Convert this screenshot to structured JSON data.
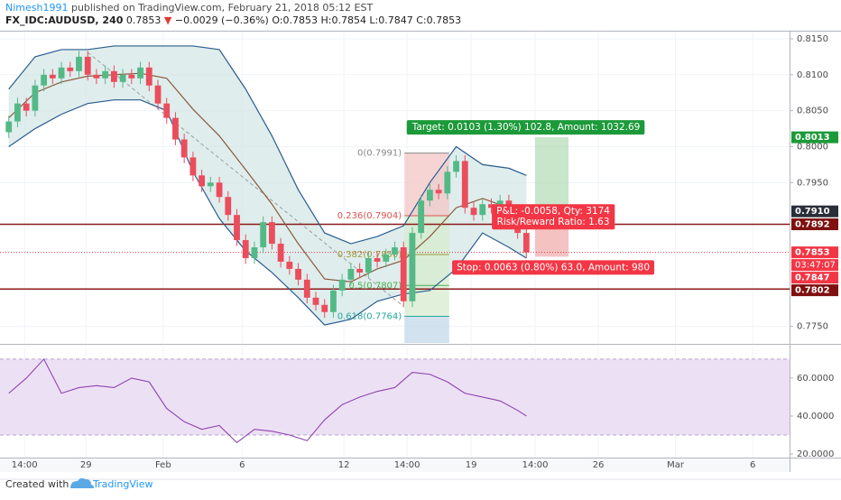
{
  "header": {
    "author": "Nimesh1991",
    "published": "published on TradingView.com, February 21, 2018 05:12 EST",
    "symbol": "FX_IDC:AUDUSD, 240",
    "last": "0.7853",
    "arrow": "▼",
    "change": "−0.0029 (−0.36%)",
    "ohlc": "O:0.7853 H:0.7854 L:0.7847 C:0.7853"
  },
  "footer": {
    "created": "Created with",
    "brand": "TradingView"
  },
  "chart_data": [
    {
      "type": "candlestick",
      "up_color": "#53b987",
      "down_color": "#eb4d5c",
      "grid": true,
      "x": [
        0,
        1,
        2,
        3,
        4,
        5,
        6,
        7,
        8,
        9,
        10,
        11,
        12,
        13,
        14,
        15,
        16,
        17,
        18,
        19,
        20,
        21,
        22,
        23,
        24,
        25,
        26,
        27,
        28,
        29,
        30,
        31,
        32,
        33,
        34,
        35,
        36,
        37,
        38,
        39,
        40,
        41,
        42,
        43,
        44,
        45,
        46,
        47,
        48,
        49,
        50,
        51,
        52,
        53,
        54,
        55,
        56,
        57,
        58,
        59
      ],
      "open": [
        0.802,
        0.8035,
        0.806,
        0.805,
        0.8085,
        0.81,
        0.8095,
        0.811,
        0.8105,
        0.8125,
        0.81,
        0.8095,
        0.8105,
        0.809,
        0.81,
        0.8095,
        0.811,
        0.8085,
        0.806,
        0.804,
        0.801,
        0.7985,
        0.796,
        0.7945,
        0.795,
        0.793,
        0.7905,
        0.787,
        0.7845,
        0.786,
        0.7895,
        0.7865,
        0.784,
        0.783,
        0.7815,
        0.779,
        0.778,
        0.777,
        0.78,
        0.7815,
        0.783,
        0.7825,
        0.7845,
        0.784,
        0.785,
        0.786,
        0.7785,
        0.788,
        0.7925,
        0.794,
        0.7935,
        0.7965,
        0.798,
        0.7915,
        0.7905,
        0.792,
        0.7915,
        0.7925,
        0.7895,
        0.788
      ],
      "high": [
        0.8043,
        0.8068,
        0.8068,
        0.8093,
        0.8108,
        0.8108,
        0.8118,
        0.8118,
        0.8133,
        0.8133,
        0.8108,
        0.8113,
        0.8113,
        0.8108,
        0.8108,
        0.8118,
        0.8118,
        0.8093,
        0.8068,
        0.8048,
        0.8018,
        0.7993,
        0.7968,
        0.7958,
        0.7958,
        0.7938,
        0.7913,
        0.7878,
        0.7868,
        0.7903,
        0.7903,
        0.7873,
        0.7848,
        0.7838,
        0.7823,
        0.7798,
        0.7788,
        0.7808,
        0.7823,
        0.7838,
        0.7838,
        0.7853,
        0.7853,
        0.7858,
        0.7868,
        0.7868,
        0.7888,
        0.7933,
        0.7948,
        0.7948,
        0.7973,
        0.7988,
        0.7988,
        0.7923,
        0.7928,
        0.7928,
        0.7933,
        0.7933,
        0.7903,
        0.7888
      ],
      "low": [
        0.8012,
        0.8027,
        0.8042,
        0.8042,
        0.8077,
        0.8087,
        0.8087,
        0.8097,
        0.8097,
        0.8092,
        0.8087,
        0.8087,
        0.8082,
        0.8082,
        0.8087,
        0.8087,
        0.8077,
        0.8052,
        0.8032,
        0.8002,
        0.7977,
        0.7952,
        0.7937,
        0.7937,
        0.7922,
        0.7897,
        0.7862,
        0.7837,
        0.7837,
        0.7852,
        0.7857,
        0.7832,
        0.7822,
        0.7807,
        0.7782,
        0.7772,
        0.7762,
        0.7762,
        0.7792,
        0.7807,
        0.7817,
        0.7817,
        0.7832,
        0.7832,
        0.7842,
        0.7777,
        0.7777,
        0.7872,
        0.7917,
        0.7927,
        0.7927,
        0.7957,
        0.7907,
        0.7897,
        0.7897,
        0.7907,
        0.7907,
        0.7887,
        0.7872,
        0.7845
      ],
      "close": [
        0.8035,
        0.806,
        0.805,
        0.8085,
        0.81,
        0.8095,
        0.811,
        0.8105,
        0.8125,
        0.81,
        0.8095,
        0.8105,
        0.809,
        0.81,
        0.8095,
        0.811,
        0.8085,
        0.806,
        0.804,
        0.801,
        0.7985,
        0.796,
        0.7945,
        0.795,
        0.793,
        0.7905,
        0.787,
        0.7845,
        0.786,
        0.7895,
        0.7865,
        0.784,
        0.783,
        0.7815,
        0.779,
        0.778,
        0.777,
        0.78,
        0.7815,
        0.783,
        0.7825,
        0.7845,
        0.784,
        0.785,
        0.786,
        0.7785,
        0.788,
        0.7925,
        0.794,
        0.7935,
        0.7965,
        0.798,
        0.7915,
        0.7905,
        0.792,
        0.7915,
        0.7925,
        0.7895,
        0.788,
        0.7853
      ],
      "xlim": [
        -1,
        89
      ],
      "xticks": [
        {
          "value": 1.8,
          "label": "14:00"
        },
        {
          "value": 8.8,
          "label": "29"
        },
        {
          "value": 17.6,
          "label": "Feb"
        },
        {
          "value": 26.6,
          "label": "6"
        },
        {
          "value": 38.2,
          "label": "12"
        },
        {
          "value": 45.4,
          "label": "14:00"
        },
        {
          "value": 52.7,
          "label": "19"
        },
        {
          "value": 60.0,
          "label": "14:00"
        },
        {
          "value": 67.2,
          "label": "26"
        },
        {
          "value": 76.0,
          "label": "Mar"
        },
        {
          "value": 84.8,
          "label": "6"
        }
      ],
      "ylim": [
        0.7727,
        0.816
      ],
      "yticks": [
        {
          "value": 0.815,
          "label": "0.8150"
        },
        {
          "value": 0.81,
          "label": "0.8100"
        },
        {
          "value": 0.805,
          "label": "0.8050"
        },
        {
          "value": 0.8,
          "label": "0.8000"
        },
        {
          "value": 0.795,
          "label": "0.7950"
        },
        {
          "value": 0.775,
          "label": "0.7750"
        }
      ],
      "band_fill": "#d2e5e5",
      "series": [
        {
          "color": "#2a5d8f",
          "x": [
            0,
            3,
            6,
            9,
            12,
            15,
            18,
            21,
            24,
            27,
            30,
            33,
            36,
            39,
            42,
            45,
            48,
            51,
            54,
            57,
            59
          ],
          "values": [
            0.808,
            0.8125,
            0.8135,
            0.8135,
            0.814,
            0.814,
            0.814,
            0.814,
            0.8135,
            0.808,
            0.8015,
            0.794,
            0.788,
            0.7865,
            0.7875,
            0.789,
            0.795,
            0.8,
            0.7975,
            0.797,
            0.796
          ]
        },
        {
          "color": "#8b5a3c",
          "x": [
            0,
            3,
            6,
            9,
            12,
            15,
            18,
            21,
            24,
            27,
            30,
            33,
            36,
            39,
            42,
            45,
            48,
            51,
            54,
            57,
            59
          ],
          "values": [
            0.804,
            0.8075,
            0.809,
            0.8098,
            0.81,
            0.8102,
            0.8095,
            0.8052,
            0.8015,
            0.7968,
            0.792,
            0.7865,
            0.7816,
            0.7812,
            0.783,
            0.7842,
            0.7875,
            0.7915,
            0.7928,
            0.7915,
            0.7903
          ]
        },
        {
          "color": "#2a5d8f",
          "x": [
            0,
            3,
            6,
            9,
            12,
            15,
            18,
            21,
            24,
            27,
            30,
            33,
            36,
            39,
            42,
            45,
            48,
            51,
            54,
            57,
            59
          ],
          "values": [
            0.8,
            0.8025,
            0.8045,
            0.806,
            0.8065,
            0.8065,
            0.805,
            0.7965,
            0.79,
            0.7855,
            0.7825,
            0.779,
            0.7752,
            0.776,
            0.7785,
            0.7795,
            0.78,
            0.783,
            0.788,
            0.786,
            0.7845
          ]
        }
      ],
      "levels": [
        {
          "value": 0.7892,
          "color": "#8b1a1a"
        },
        {
          "value": 0.7802,
          "color": "#8b1a1a"
        },
        {
          "value": 0.7853,
          "color": "#f23645",
          "style": "dotted"
        }
      ],
      "fib": {
        "x": [
          45.1,
          50.2
        ],
        "trend": {
          "x": [
            9,
            45
          ],
          "values": [
            0.8131,
            0.7778
          ]
        },
        "levels": [
          {
            "label": "0(0.7991)",
            "value": 0.7991,
            "color": "#888888",
            "zone": "#f3c6c6"
          },
          {
            "label": "0.236(0.7904)",
            "value": 0.7904,
            "color": "#d9534f",
            "zone": "#d5ebcd"
          },
          {
            "label": "0.382(0.7850)",
            "value": 0.785,
            "color": "#9c9c3c",
            "zone": "#d5ebcd"
          },
          {
            "label": "0.5(0.7807)",
            "value": 0.7807,
            "color": "#4caf50",
            "zone": "#d5ebcd"
          },
          {
            "label": "0.618(0.7764)",
            "value": 0.7764,
            "color": "#26a69a",
            "zone": "#c3d8ea"
          }
        ]
      },
      "position": {
        "x": [
          60,
          63.8
        ],
        "entry": 0.791,
        "target": 0.8013,
        "stop": 0.7847,
        "target_label": "Target: 0.0103 (1.30%) 102.8, Amount: 1032.69",
        "pnl_label": "P&L: -0.0058, Qty: 3174",
        "ratio_label": "Risk/Reward Ratio: 1.63",
        "stop_label": "Stop: 0.0063 (0.80%) 63.0, Amount: 980"
      },
      "price_labels": [
        {
          "value": 0.8013,
          "color": "#1c9a3a"
        },
        {
          "value": 0.791,
          "label": "0.7910",
          "color": "#2a2e39"
        },
        {
          "value": 0.7892,
          "color": "#7f1010"
        },
        {
          "value": 0.7853,
          "color": "#f23645",
          "countdown": "03:47:07"
        },
        {
          "value": 0.7847,
          "color": "#f23645"
        },
        {
          "value": 0.7802,
          "color": "#7f1010"
        }
      ]
    },
    {
      "type": "line",
      "color": "#8e44ad",
      "x": [
        0,
        2,
        4,
        6,
        8,
        10,
        12,
        14,
        16,
        18,
        20,
        22,
        24,
        26,
        28,
        30,
        32,
        34,
        36,
        38,
        40,
        42,
        44,
        46,
        48,
        50,
        52,
        54,
        56,
        58,
        59
      ],
      "values": [
        52,
        60,
        70,
        52,
        55,
        56,
        55,
        60,
        58,
        44,
        37,
        33,
        35,
        26,
        33,
        32,
        30,
        27,
        38,
        46,
        50,
        53,
        55,
        63,
        62,
        58,
        52,
        50,
        48,
        43,
        40
      ],
      "band": [
        30,
        70
      ],
      "band_color": "#ece0f5",
      "ylim": [
        18.1,
        77.1
      ],
      "yticks": [
        {
          "value": 60,
          "label": "60.0000"
        },
        {
          "value": 40,
          "label": "40.0000"
        },
        {
          "value": 20,
          "label": "20.0000"
        }
      ]
    }
  ]
}
